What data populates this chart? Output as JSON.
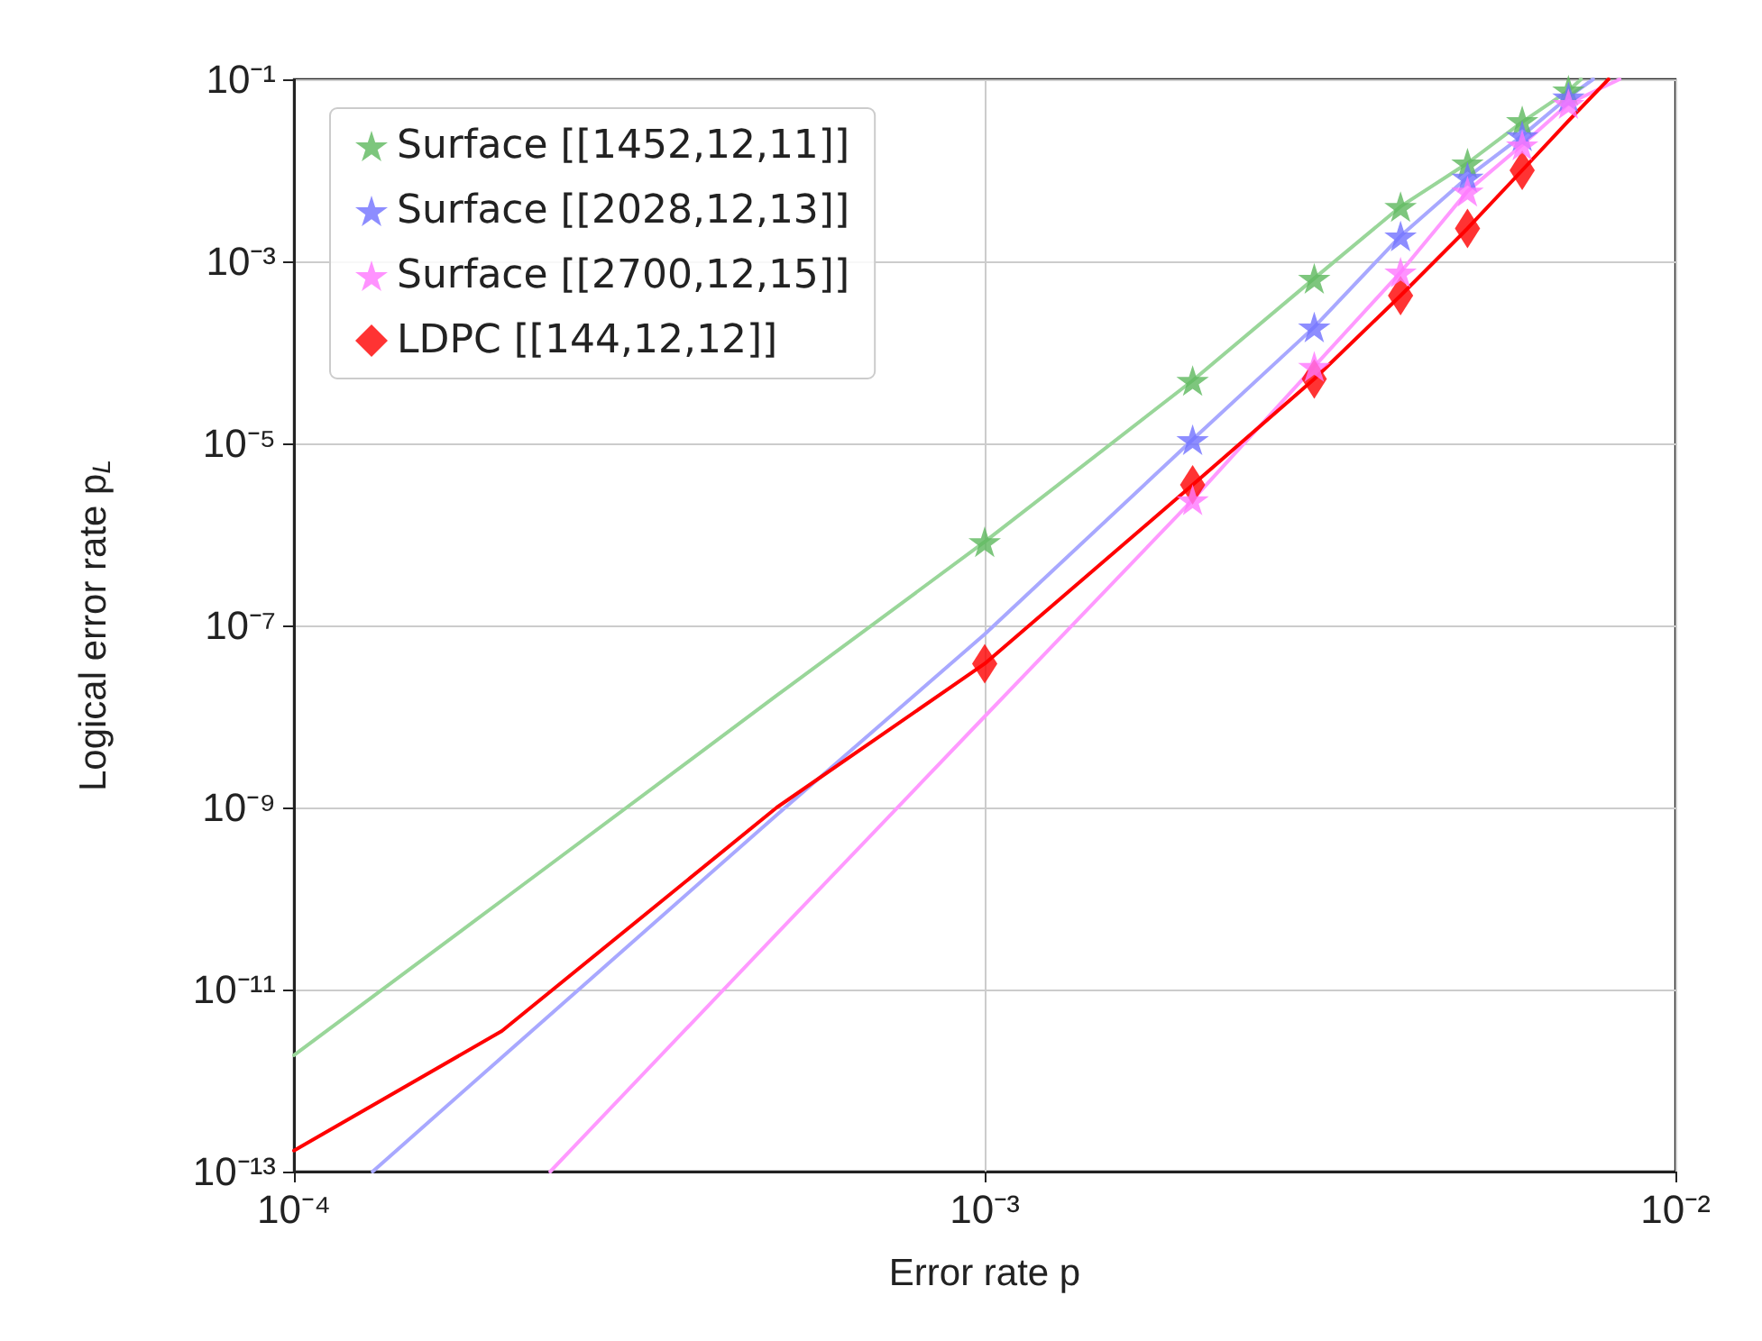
{
  "chart_data": {
    "type": "scatter",
    "xlabel": "Error rate p",
    "ylabel": "Logical error rate p$_{L}$",
    "log": "xy",
    "grid": true,
    "legend": "top left",
    "xlim": [
      0.0001,
      0.01
    ],
    "ylim": [
      1e-13,
      0.1
    ],
    "xticks": [
      {
        "value": 0.0001,
        "label": "10⁻⁴"
      },
      {
        "value": 0.001,
        "label": "10⁻³"
      },
      {
        "value": 0.01,
        "label": "10⁻²"
      }
    ],
    "yticks": [
      {
        "value": 1e-13,
        "label": "10⁻¹³"
      },
      {
        "value": 1e-11,
        "label": "10⁻¹¹"
      },
      {
        "value": 1e-09,
        "label": "10⁻⁹"
      },
      {
        "value": 1e-07,
        "label": "10⁻⁷"
      },
      {
        "value": 1e-05,
        "label": "10⁻⁵"
      },
      {
        "value": 0.001,
        "label": "10⁻³"
      },
      {
        "value": 0.1,
        "label": "10⁻¹"
      }
    ],
    "series": [
      {
        "type": "line",
        "color": "#99d699",
        "marker": "none",
        "x": [
          0.0001,
          0.0002,
          0.0005,
          0.001,
          0.002,
          0.003,
          0.004,
          0.005,
          0.006,
          0.007,
          0.0073
        ],
        "values": [
          1.9e-12,
          9.5e-11,
          1.7e-08,
          8.3e-07,
          4.9e-05,
          0.00065,
          0.004,
          0.012,
          0.034,
          0.075,
          0.1
        ]
      },
      {
        "type": "line",
        "color": "#a8a8ff",
        "marker": "none",
        "x": [
          0.00013,
          0.0002,
          0.0005,
          0.001,
          0.002,
          0.003,
          0.004,
          0.005,
          0.006,
          0.007,
          0.0076
        ],
        "values": [
          1e-13,
          1.8e-12,
          8.3e-10,
          8e-08,
          1.1e-05,
          0.00019,
          0.0019,
          0.0084,
          0.024,
          0.064,
          0.1
        ]
      },
      {
        "type": "line",
        "color": "#ff99ff",
        "marker": "none",
        "x": [
          0.000235,
          0.0005,
          0.001,
          0.002,
          0.003,
          0.004,
          0.005,
          0.006,
          0.007,
          0.0083
        ],
        "values": [
          1e-13,
          4.1e-11,
          1e-08,
          2.4e-06,
          7e-05,
          0.00076,
          0.0059,
          0.019,
          0.054,
          0.1
        ]
      },
      {
        "type": "line",
        "color": "#ff0000",
        "marker": "none",
        "x": [
          0.0001,
          0.0002,
          0.0005,
          0.001,
          0.002,
          0.003,
          0.004,
          0.005,
          0.006,
          0.007,
          0.008
        ],
        "values": [
          1.7e-13,
          3.5e-12,
          1e-09,
          3.8e-08,
          3.5e-06,
          5.1e-05,
          0.00042,
          0.0023,
          0.01,
          0.035,
          0.1
        ]
      },
      {
        "name": "Surface [[1452,12,11]]",
        "color": "#5cb85c",
        "marker": "star",
        "x": [
          0.001,
          0.002,
          0.003,
          0.004,
          0.005,
          0.006,
          0.007
        ],
        "values": [
          8.3e-07,
          4.9e-05,
          0.00065,
          0.004,
          0.012,
          0.035,
          0.076
        ]
      },
      {
        "name": "Surface [[2028,12,13]]",
        "color": "#7070ff",
        "marker": "star",
        "x": [
          0.002,
          0.003,
          0.004,
          0.005,
          0.006,
          0.007
        ],
        "values": [
          1.1e-05,
          0.00019,
          0.0019,
          0.0084,
          0.024,
          0.064
        ]
      },
      {
        "name": "Surface [[2700,12,15]]",
        "color": "#ff77ff",
        "marker": "star",
        "x": [
          0.002,
          0.003,
          0.004,
          0.005,
          0.006,
          0.007
        ],
        "values": [
          2.4e-06,
          7e-05,
          0.00076,
          0.0059,
          0.019,
          0.054
        ]
      },
      {
        "name": "LDPC [[144,12,12]]",
        "color": "#ff0000",
        "marker": "diamond",
        "x": [
          0.001,
          0.002,
          0.003,
          0.004,
          0.005,
          0.006
        ],
        "values": [
          3.8e-08,
          3.5e-06,
          5.1e-05,
          0.00042,
          0.0023,
          0.01
        ]
      }
    ]
  }
}
